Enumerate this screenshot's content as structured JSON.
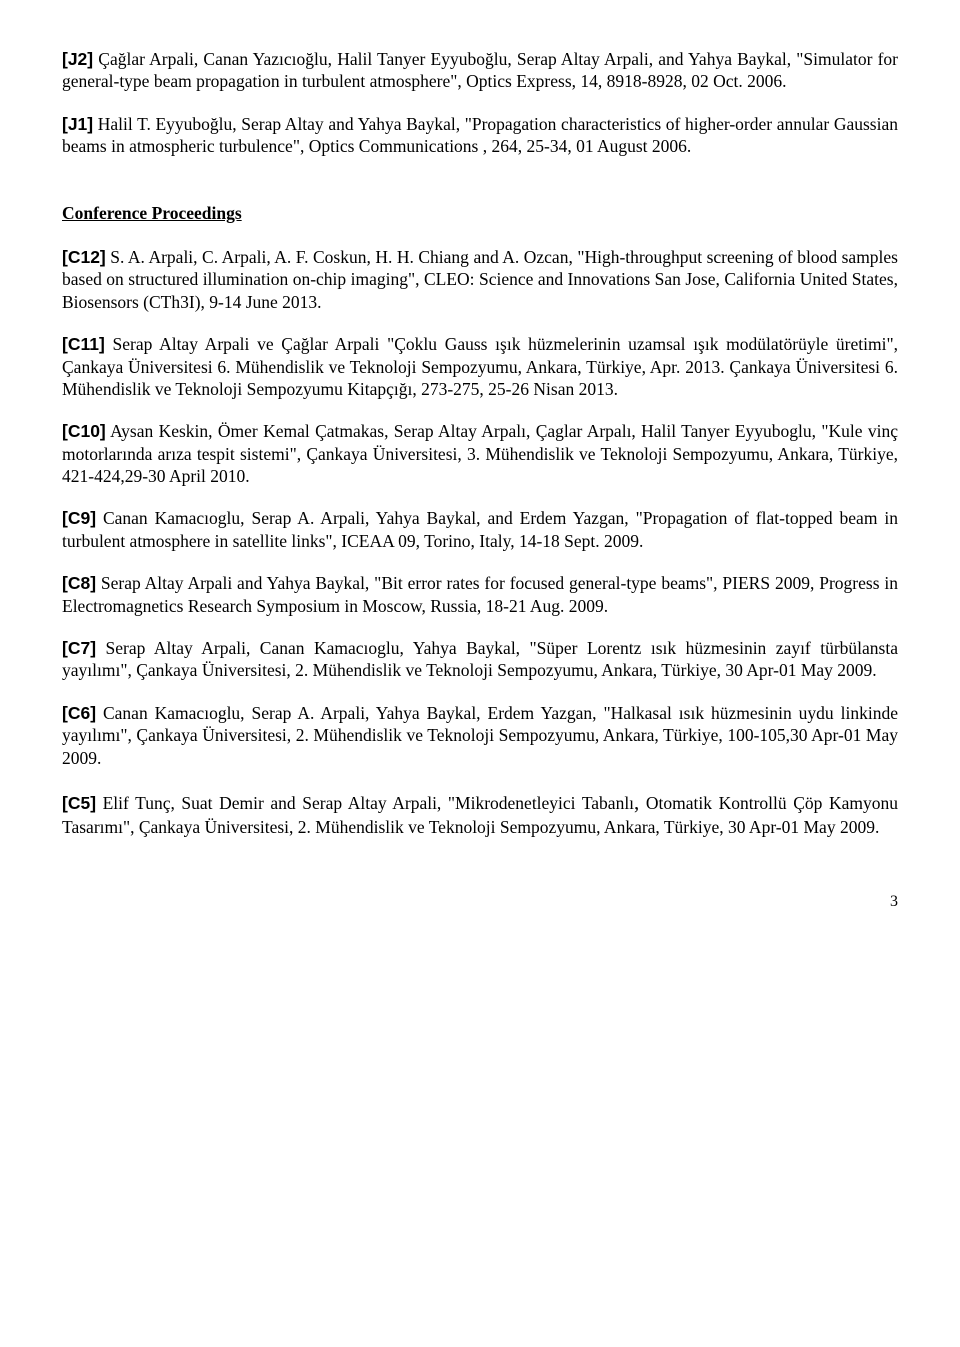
{
  "j2": {
    "tag": "[J2]",
    "text": " Çağlar Arpali, Canan Yazıcıoğlu, Halil Tanyer Eyyuboğlu, Serap Altay Arpali, and Yahya Baykal, \"Simulator for general-type beam propagation in turbulent atmosphere\", Optics Express, 14, 8918-8928, 02 Oct. 2006."
  },
  "j1": {
    "tag": "[J1]",
    "text": " Halil T. Eyyuboğlu, Serap Altay and Yahya Baykal, \"Propagation characteristics of higher-order annular Gaussian beams in atmospheric turbulence\", Optics Communications , 264, 25-34, 01 August 2006."
  },
  "heading": "Conference Proceedings",
  "c12": {
    "tag": "[C12]",
    "text": " S. A. Arpali, C. Arpali, A. F. Coskun, H. H. Chiang and A. Ozcan, \"High-throughput screening of blood samples based on structured illumination on-chip imaging\", CLEO: Science and Innovations San Jose, California United States, Biosensors (CTh3I), 9-14 June 2013."
  },
  "c11": {
    "tag": "[C11]",
    "text": " Serap Altay Arpali ve Çağlar Arpali \"Çoklu Gauss ışık  hüzmelerinin uzamsal ışık modülatörüyle üretimi\", Çankaya Üniversitesi 6. Mühendislik ve Teknoloji Sempozyumu, Ankara, Türkiye, Apr. 2013. Çankaya Üniversitesi 6. Mühendislik ve Teknoloji Sempozyumu Kitapçığı, 273-275, 25-26 Nisan 2013."
  },
  "c10": {
    "tag": "[C10]",
    "text": " Aysan Keskin, Ömer Kemal Çatmakas, Serap Altay Arpalı, Çaglar Arpalı, Halil Tanyer Eyyuboglu, \"Kule vinç motorlarında arıza tespit sistemi\", Çankaya Üniversitesi, 3. Mühendislik ve Teknoloji Sempozyumu, Ankara, Türkiye, 421-424,29-30 April 2010."
  },
  "c9": {
    "tag": "[C9]",
    "text": " Canan Kamacıoglu, Serap A. Arpali, Yahya Baykal, and Erdem Yazgan, \"Propagation of flat-topped beam in turbulent atmosphere in satellite links\", ICEAA 09, Torino, Italy, 14-18 Sept. 2009."
  },
  "c8": {
    "tag": "[C8]",
    "text": " Serap Altay Arpali and Yahya Baykal, \"Bit error rates for focused general-type beams\", PIERS 2009, Progress in Electromagnetics Research Symposium in Moscow, Russia, 18-21 Aug. 2009."
  },
  "c7": {
    "tag": "[C7]",
    "text": " Serap Altay Arpali, Canan Kamacıoglu, Yahya Baykal, \"Süper Lorentz ısık hüzmesinin zayıf türbülansta yayılımı\", Çankaya Üniversitesi, 2. Mühendislik ve Teknoloji Sempozyumu, Ankara, Türkiye, 30 Apr-01 May 2009."
  },
  "c6": {
    "tag": "[C6]",
    "text": " Canan Kamacıoglu, Serap A. Arpali, Yahya Baykal, Erdem Yazgan, \"Halkasal ısık hüzmesinin uydu linkinde yayılımı\", Çankaya Üniversitesi, 2. Mühendislik ve Teknoloji Sempozyumu, Ankara, Türkiye, 100-105,30 Apr-01 May 2009."
  },
  "c5": {
    "tag": "[C5]",
    "text_a": " Elif Tunç, Suat Demir and Serap Altay Arpali, \"Mikrodenetleyici Tabanlı",
    "comma": ",",
    "text_b": " Otomatik Kontrollü Çöp Kamyonu Tasarımı\", Çankaya Üniversitesi, 2. Mühendislik ve Teknoloji Sempozyumu, Ankara, Türkiye, 30 Apr-01 May 2009."
  },
  "page_num": "3"
}
